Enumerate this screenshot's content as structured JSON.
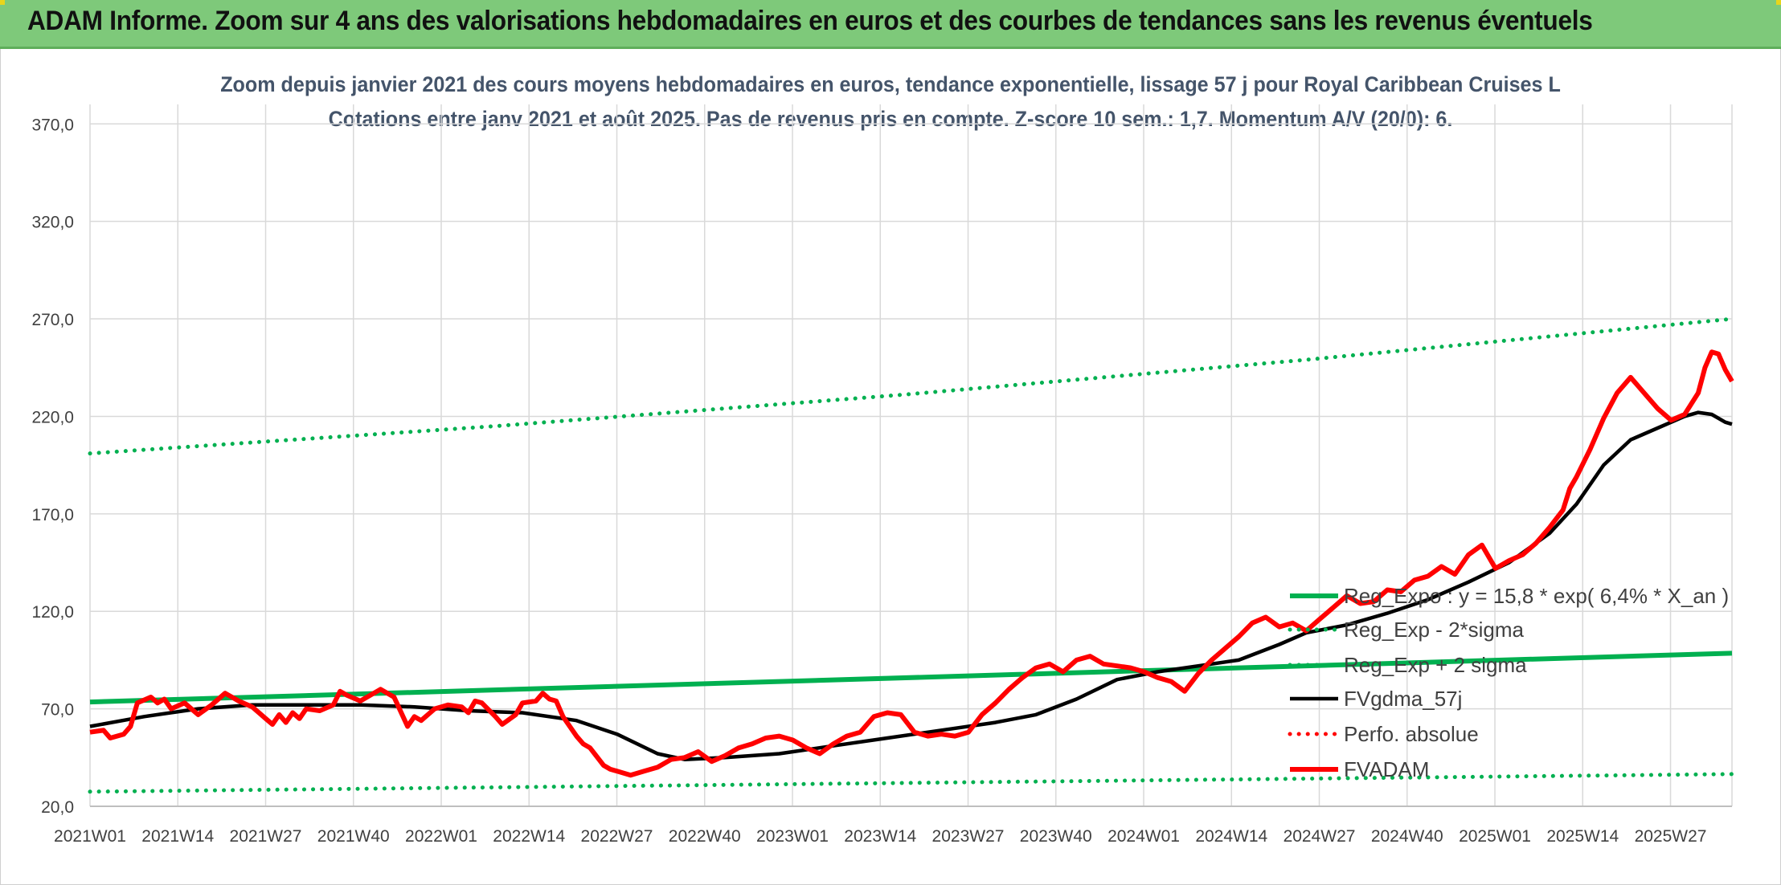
{
  "banner": {
    "title": "ADAM Informe. Zoom sur 4 ans des valorisations hebdomadaires en euros et des courbes de tendances sans les revenus éventuels",
    "background": "#7ec97a"
  },
  "chart_data": {
    "type": "line",
    "title": "Zoom depuis janvier 2021 des cours moyens hebdomadaires en euros, tendance exponentielle, lissage 57 j pour Royal Caribbean Cruises L",
    "subtitle": "Cotations entre janv 2021 et août 2025. Pas de revenus pris en compte. Z-score 10 sem.: 1,7. Momentum A/V (20/0): 6.",
    "xlabel": "",
    "ylabel": "",
    "x_tick_labels": [
      "2021W01",
      "2021W14",
      "2021W27",
      "2021W40",
      "2022W01",
      "2022W14",
      "2022W27",
      "2022W40",
      "2023W01",
      "2023W14",
      "2023W27",
      "2023W40",
      "2024W01",
      "2024W14",
      "2024W27",
      "2024W40",
      "2025W01",
      "2025W14",
      "2025W27"
    ],
    "y_tick_labels": [
      "20,0",
      "70,0",
      "120,0",
      "170,0",
      "220,0",
      "270,0",
      "320,0",
      "370,0"
    ],
    "ylim": [
      20,
      380
    ],
    "x_range_weeks": [
      0,
      243
    ],
    "grid": true,
    "legend_position": "right, lower middle",
    "series": [
      {
        "name": "Reg_Expo : y = 15,8 * exp( 6,4% *  X_an )",
        "style": "solid",
        "color": "#00b050",
        "points": [
          [
            0,
            73.5
          ],
          [
            243,
            98.5
          ]
        ]
      },
      {
        "name": "Reg_Exp - 2*sigma",
        "style": "dotted",
        "color": "#00b050",
        "points": [
          [
            0,
            27.5
          ],
          [
            243,
            36.5
          ]
        ]
      },
      {
        "name": "Reg_Exp + 2 sigma",
        "style": "dotted",
        "color": "#00b050",
        "points": [
          [
            0,
            201
          ],
          [
            60,
            215
          ],
          [
            120,
            231
          ],
          [
            180,
            249
          ],
          [
            243,
            270
          ]
        ]
      },
      {
        "name": "FVgdma_57j",
        "style": "solid",
        "color": "#000000",
        "points": [
          [
            0,
            61
          ],
          [
            8,
            66
          ],
          [
            16,
            70
          ],
          [
            24,
            72
          ],
          [
            32,
            72
          ],
          [
            40,
            72
          ],
          [
            48,
            71
          ],
          [
            56,
            69
          ],
          [
            64,
            68
          ],
          [
            72,
            64
          ],
          [
            78,
            57
          ],
          [
            84,
            47
          ],
          [
            88,
            44
          ],
          [
            94,
            45
          ],
          [
            102,
            47
          ],
          [
            110,
            51
          ],
          [
            118,
            55
          ],
          [
            126,
            59
          ],
          [
            134,
            63
          ],
          [
            140,
            67
          ],
          [
            146,
            75
          ],
          [
            152,
            85
          ],
          [
            158,
            89
          ],
          [
            164,
            92
          ],
          [
            170,
            95
          ],
          [
            176,
            103
          ],
          [
            180,
            109
          ],
          [
            186,
            113
          ],
          [
            192,
            119
          ],
          [
            198,
            126
          ],
          [
            204,
            135
          ],
          [
            210,
            145
          ],
          [
            216,
            160
          ],
          [
            220,
            175
          ],
          [
            224,
            195
          ],
          [
            228,
            208
          ],
          [
            232,
            214
          ],
          [
            236,
            220
          ],
          [
            238,
            222
          ],
          [
            240,
            221
          ],
          [
            242,
            217
          ],
          [
            243,
            216
          ]
        ]
      },
      {
        "name": "Perfo. absolue",
        "style": "dotted",
        "color": "#ff0000",
        "points": []
      },
      {
        "name": "FVADAM",
        "style": "solid",
        "color": "#ff0000",
        "points": [
          [
            0,
            58
          ],
          [
            2,
            59
          ],
          [
            3,
            55
          ],
          [
            5,
            57
          ],
          [
            6,
            61
          ],
          [
            7,
            73
          ],
          [
            9,
            76
          ],
          [
            10,
            73
          ],
          [
            11,
            75
          ],
          [
            12,
            70
          ],
          [
            14,
            73
          ],
          [
            16,
            67
          ],
          [
            18,
            72
          ],
          [
            20,
            78
          ],
          [
            22,
            74
          ],
          [
            24,
            71
          ],
          [
            26,
            65
          ],
          [
            27,
            62
          ],
          [
            28,
            67
          ],
          [
            29,
            63
          ],
          [
            30,
            68
          ],
          [
            31,
            65
          ],
          [
            32,
            70
          ],
          [
            34,
            69
          ],
          [
            36,
            72
          ],
          [
            37,
            79
          ],
          [
            38,
            77
          ],
          [
            40,
            74
          ],
          [
            42,
            78
          ],
          [
            43,
            80
          ],
          [
            45,
            76
          ],
          [
            47,
            61
          ],
          [
            48,
            66
          ],
          [
            49,
            64
          ],
          [
            51,
            70
          ],
          [
            53,
            72
          ],
          [
            55,
            71
          ],
          [
            56,
            68
          ],
          [
            57,
            74
          ],
          [
            58,
            73
          ],
          [
            60,
            66
          ],
          [
            61,
            62
          ],
          [
            63,
            67
          ],
          [
            64,
            73
          ],
          [
            66,
            74
          ],
          [
            67,
            78
          ],
          [
            68,
            75
          ],
          [
            69,
            74
          ],
          [
            70,
            66
          ],
          [
            72,
            56
          ],
          [
            73,
            52
          ],
          [
            74,
            50
          ],
          [
            76,
            41
          ],
          [
            77,
            39
          ],
          [
            78,
            38
          ],
          [
            80,
            36
          ],
          [
            82,
            38
          ],
          [
            84,
            40
          ],
          [
            86,
            44
          ],
          [
            88,
            45
          ],
          [
            90,
            48
          ],
          [
            92,
            43
          ],
          [
            94,
            46
          ],
          [
            96,
            50
          ],
          [
            98,
            52
          ],
          [
            100,
            55
          ],
          [
            102,
            56
          ],
          [
            104,
            54
          ],
          [
            106,
            50
          ],
          [
            108,
            47
          ],
          [
            110,
            52
          ],
          [
            112,
            56
          ],
          [
            114,
            58
          ],
          [
            116,
            66
          ],
          [
            118,
            68
          ],
          [
            120,
            67
          ],
          [
            122,
            58
          ],
          [
            124,
            56
          ],
          [
            126,
            57
          ],
          [
            128,
            56
          ],
          [
            130,
            58
          ],
          [
            132,
            67
          ],
          [
            134,
            73
          ],
          [
            136,
            80
          ],
          [
            138,
            86
          ],
          [
            140,
            91
          ],
          [
            142,
            93
          ],
          [
            144,
            89
          ],
          [
            146,
            95
          ],
          [
            148,
            97
          ],
          [
            150,
            93
          ],
          [
            152,
            92
          ],
          [
            154,
            91
          ],
          [
            156,
            89
          ],
          [
            158,
            86
          ],
          [
            160,
            84
          ],
          [
            162,
            79
          ],
          [
            164,
            88
          ],
          [
            166,
            95
          ],
          [
            168,
            101
          ],
          [
            170,
            107
          ],
          [
            172,
            114
          ],
          [
            174,
            117
          ],
          [
            176,
            112
          ],
          [
            178,
            114
          ],
          [
            180,
            110
          ],
          [
            182,
            116
          ],
          [
            184,
            122
          ],
          [
            186,
            128
          ],
          [
            188,
            124
          ],
          [
            190,
            125
          ],
          [
            192,
            131
          ],
          [
            194,
            130
          ],
          [
            196,
            136
          ],
          [
            198,
            138
          ],
          [
            200,
            143
          ],
          [
            202,
            139
          ],
          [
            204,
            149
          ],
          [
            206,
            154
          ],
          [
            208,
            142
          ],
          [
            210,
            146
          ],
          [
            212,
            149
          ],
          [
            214,
            155
          ],
          [
            216,
            163
          ],
          [
            218,
            172
          ],
          [
            219,
            183
          ],
          [
            220,
            189
          ],
          [
            222,
            203
          ],
          [
            224,
            219
          ],
          [
            226,
            232
          ],
          [
            228,
            240
          ],
          [
            230,
            232
          ],
          [
            232,
            224
          ],
          [
            234,
            218
          ],
          [
            236,
            221
          ],
          [
            238,
            232
          ],
          [
            239,
            245
          ],
          [
            240,
            253
          ],
          [
            241,
            252
          ],
          [
            242,
            244
          ],
          [
            243,
            238
          ]
        ]
      }
    ]
  }
}
